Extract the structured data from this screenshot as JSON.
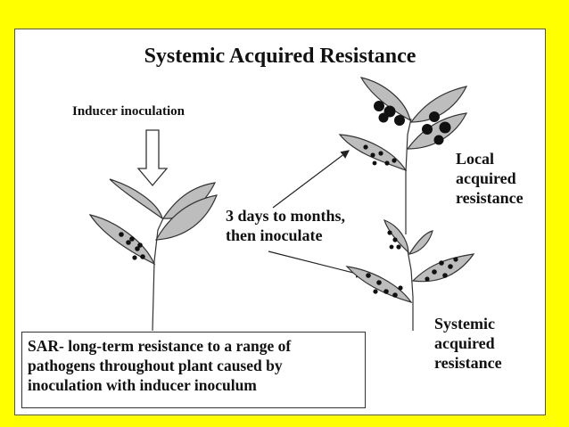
{
  "title": "Systemic Acquired Resistance",
  "labels": {
    "inducer": "Inducer inoculation",
    "timing": "3 days to months,\nthen inoculate",
    "local": "Local\nacquired\nresistance",
    "systemic": "Systemic\nacquired\nresistance"
  },
  "summary": "SAR- long-term resistance to a range of pathogens throughout plant caused by inoculation with inducer inoculum",
  "colors": {
    "background": "#FFFF00",
    "leaf_fill": "#BDBDBD",
    "lesion": "#111111"
  }
}
